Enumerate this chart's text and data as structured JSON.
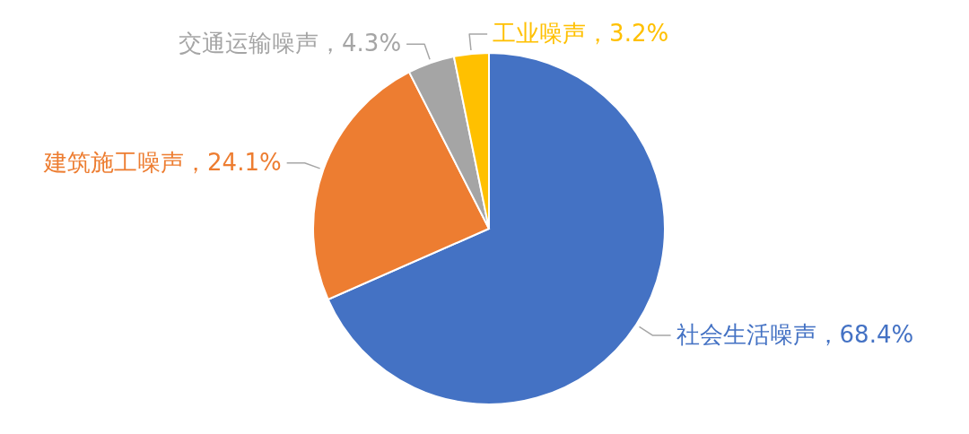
{
  "chart_data": {
    "type": "pie",
    "categories": [
      "社会生活噪声",
      "建筑施工噪声",
      "交通运输噪声",
      "工业噪声"
    ],
    "values": [
      68.4,
      24.1,
      4.3,
      3.2
    ],
    "colors": [
      "#4472c4",
      "#ed7d31",
      "#a5a5a5",
      "#ffc000"
    ],
    "value_labels": [
      "68.4%",
      "24.1%",
      "4.3%",
      "3.2%"
    ]
  }
}
